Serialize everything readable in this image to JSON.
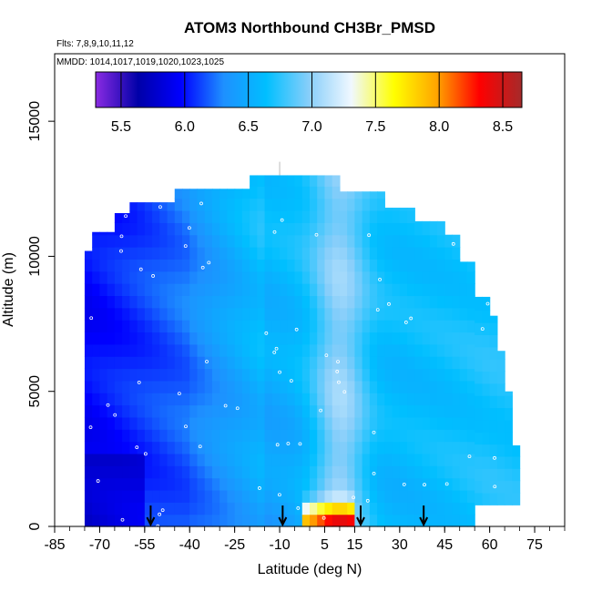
{
  "chart_data": {
    "type": "heatmap",
    "title": "ATOM3 Northbound CH3Br_PMSD",
    "flights_text": "Flts: 7,8,9,10,11,12",
    "dates_text": "MMDD: 1014,1017,1019,1020,1023,1025",
    "xlabel": "Latitude (deg N)",
    "ylabel": "Altitude (m)",
    "xlim": [
      -85,
      85
    ],
    "ylim": [
      0,
      17500
    ],
    "x_ticks": [
      -85,
      -70,
      -55,
      -40,
      -25,
      -10,
      5,
      15,
      30,
      45,
      60,
      75
    ],
    "x_tick_labels": [
      "-85",
      "-70",
      "-55",
      "-40",
      "-25",
      "-10",
      "5",
      "15",
      "30",
      "45",
      "60",
      "75"
    ],
    "y_ticks": [
      0,
      5000,
      10000,
      15000
    ],
    "y_tick_labels": [
      "0",
      "5000",
      "10000",
      "15000"
    ],
    "colorbar": {
      "range": [
        5.3,
        8.65
      ],
      "tick_values": [
        5.5,
        6.0,
        6.5,
        7.0,
        7.5,
        8.0,
        8.5
      ],
      "tick_labels": [
        "5.5",
        "6.0",
        "6.5",
        "7.0",
        "7.5",
        "8.0",
        "8.5"
      ],
      "colors": [
        "#8a2be2",
        "#0000a8",
        "#0000ff",
        "#1e90ff",
        "#00bfff",
        "#87cefa",
        "#f0f8ff",
        "#ffff00",
        "#ffa500",
        "#ff0000",
        "#a52a2a"
      ]
    },
    "arrow_latitudes": [
      -53,
      -9,
      17,
      38
    ],
    "field_description": "Curtain of CH3Br_PMSD vs latitude and altitude; low values (~5.9-6.3) in southern lower troposphere, high values (~7.0-8.5) near the equator near surface, ~6.5-6.9 aloft.",
    "field_extent": {
      "lat_min": -75,
      "lat_max": 70,
      "alt_max": 13000
    }
  }
}
